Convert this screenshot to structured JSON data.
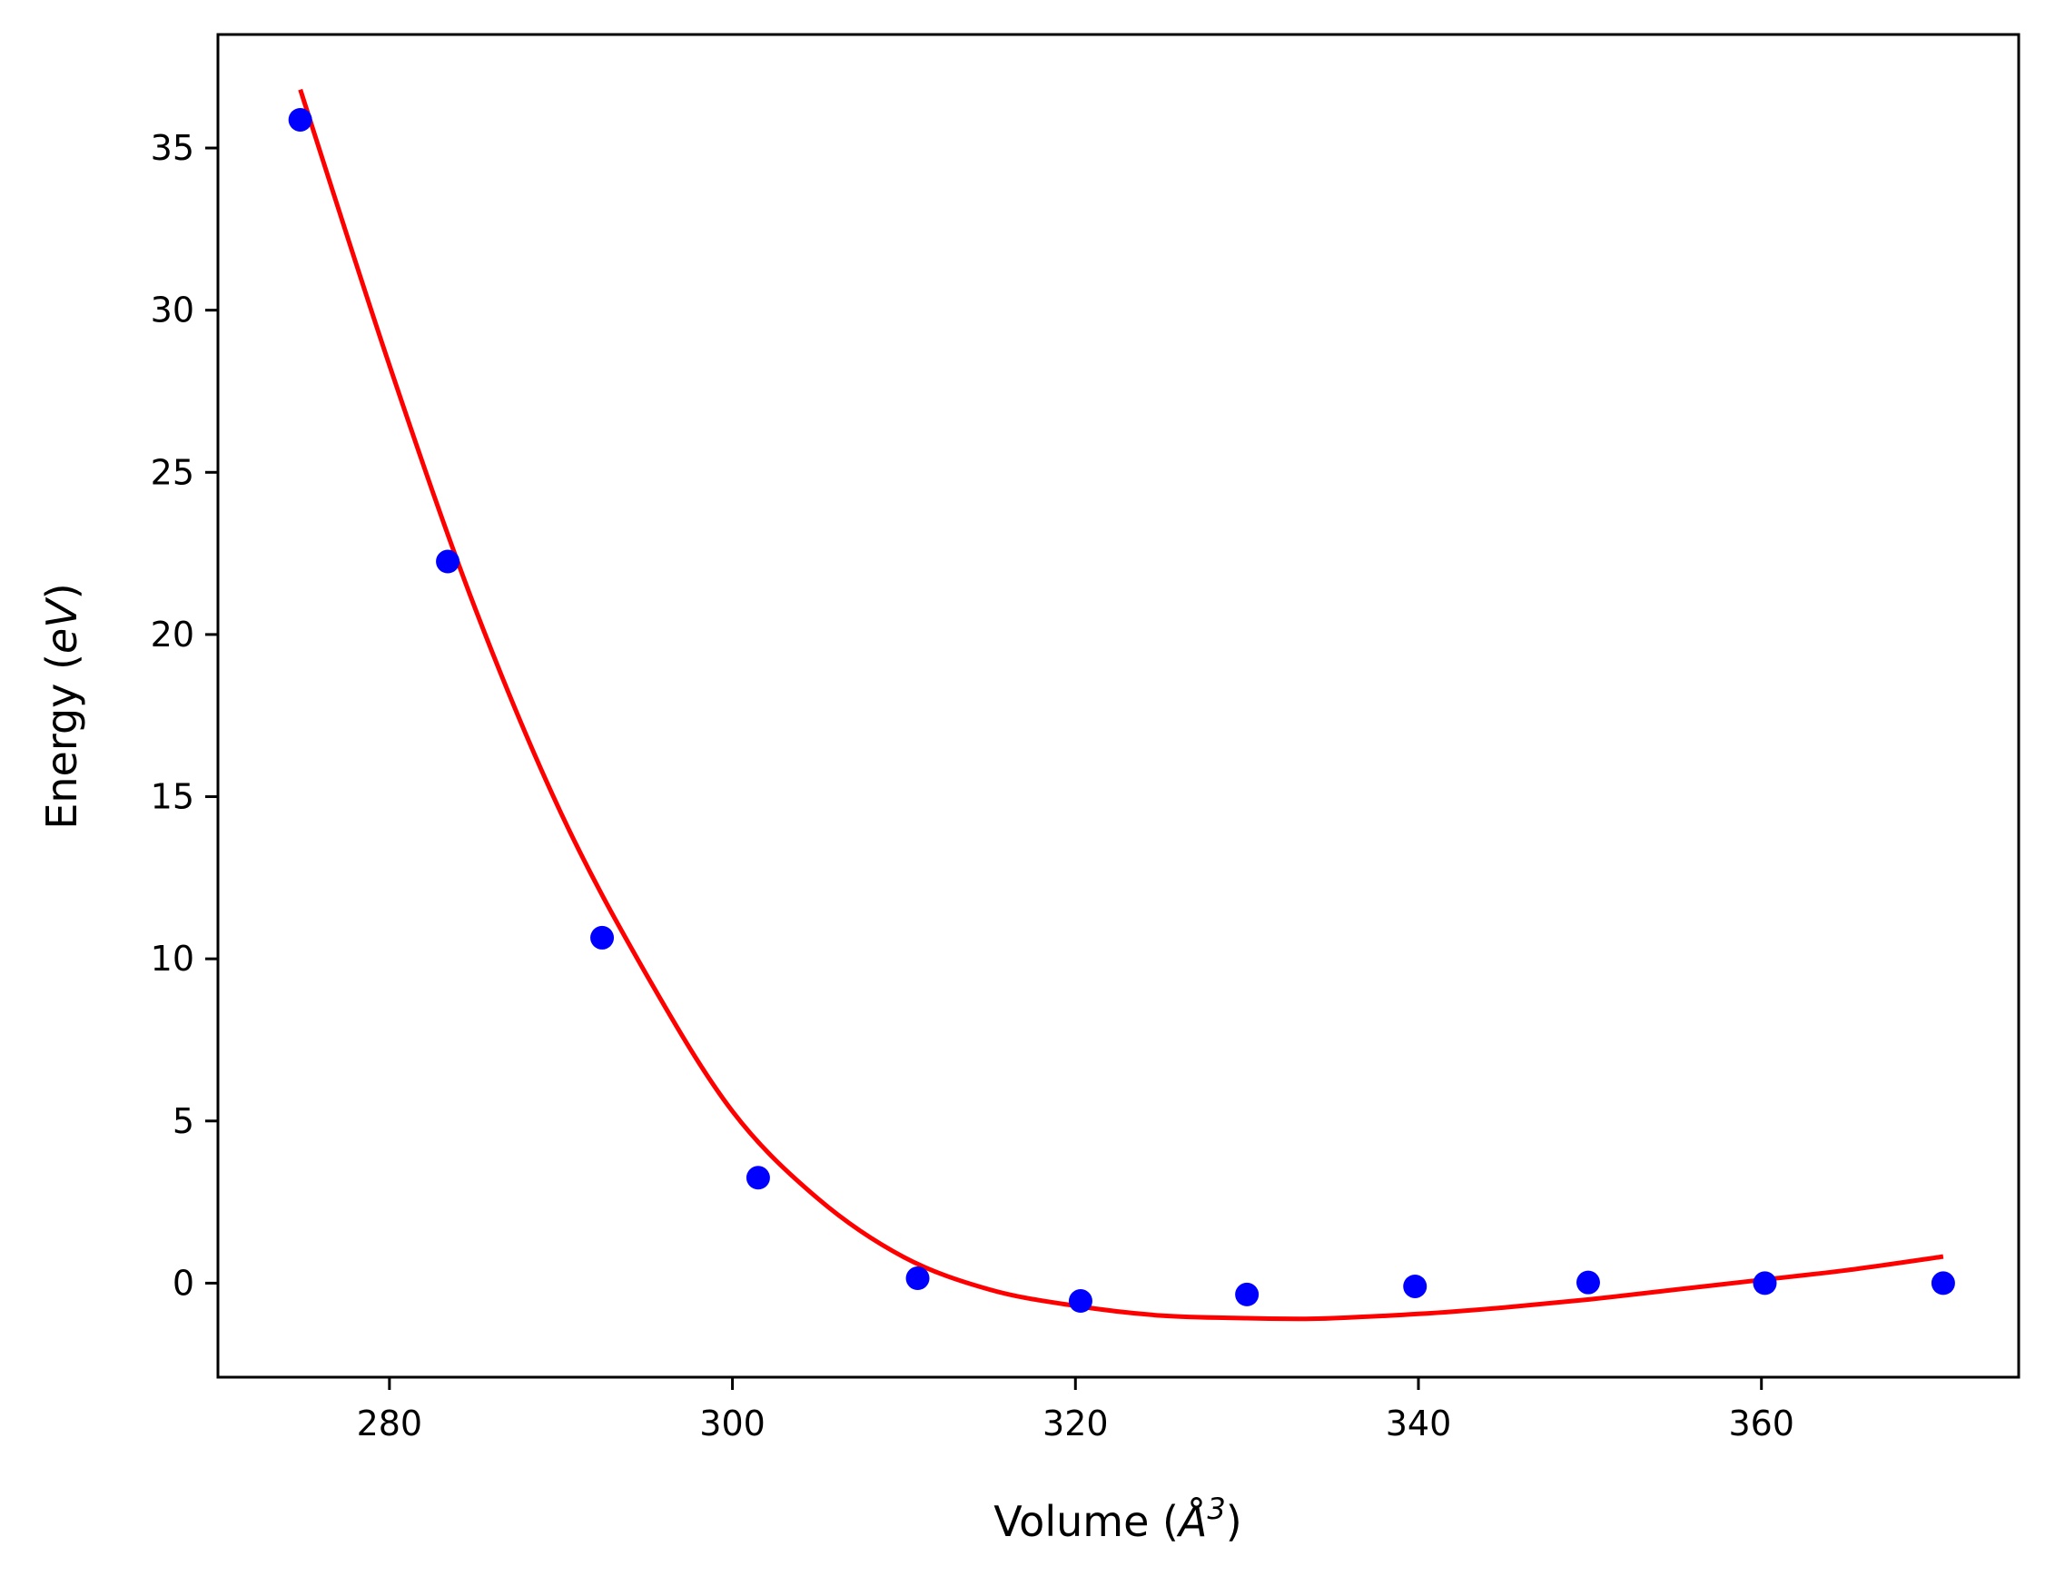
{
  "chart_data": {
    "type": "scatter",
    "xlabel_parts": [
      "Volume (",
      "Å",
      "3",
      ")"
    ],
    "ylabel_parts": [
      "Energy (",
      "eV",
      ")"
    ],
    "xlim": [
      270,
      375
    ],
    "ylim": [
      -2.9,
      38.5
    ],
    "xticks": [
      280,
      300,
      320,
      340,
      360
    ],
    "yticks": [
      0,
      5,
      10,
      15,
      20,
      25,
      30,
      35
    ],
    "grid": false,
    "legend": "none",
    "series": [
      {
        "kind": "points",
        "color": "#0000ff",
        "x": [
          274.8,
          283.4,
          292.4,
          301.5,
          310.8,
          320.3,
          330.0,
          339.8,
          349.9,
          360.2,
          370.6
        ],
        "y": [
          35.87,
          22.25,
          10.65,
          3.25,
          0.15,
          -0.55,
          -0.35,
          -0.1,
          0.02,
          0.0,
          0.0
        ]
      },
      {
        "kind": "fit-curve",
        "color": "#ff0000",
        "x": [
          274.8,
          280,
          285,
          290,
          295,
          300,
          305,
          310,
          315,
          320,
          325,
          330,
          333,
          335,
          340,
          345,
          350,
          355,
          360,
          365,
          370.6
        ],
        "y": [
          36.8,
          28.3,
          20.8,
          14.5,
          9.5,
          5.3,
          2.6,
          0.8,
          -0.2,
          -0.7,
          -1.0,
          -1.08,
          -1.1,
          -1.08,
          -0.95,
          -0.75,
          -0.5,
          -0.2,
          0.1,
          0.4,
          0.82
        ]
      }
    ]
  }
}
